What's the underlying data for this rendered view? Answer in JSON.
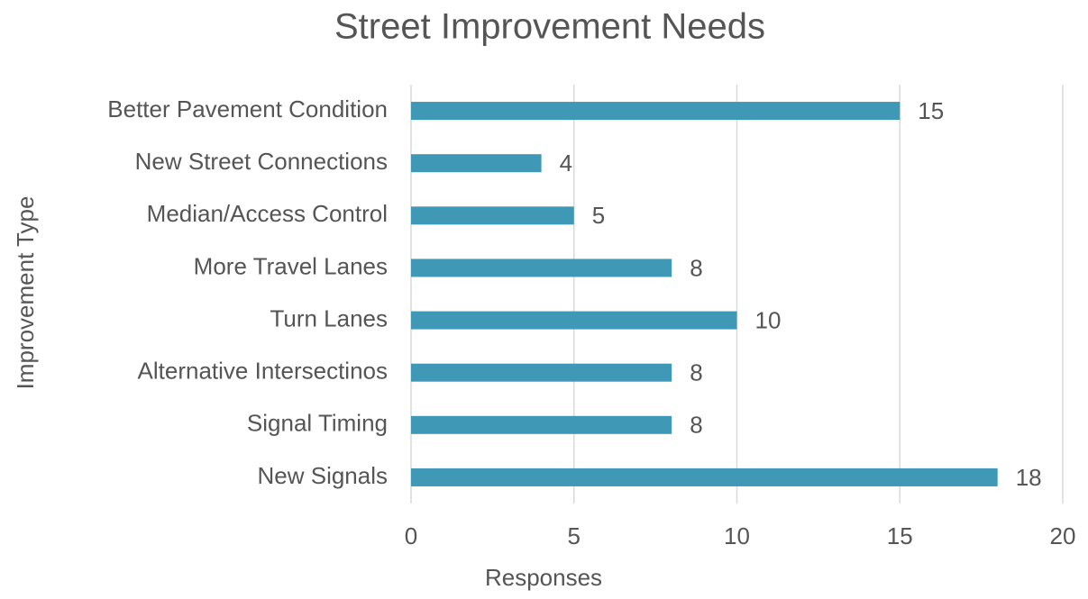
{
  "chart_data": {
    "type": "bar",
    "orientation": "horizontal",
    "title": "Street Improvement Needs",
    "x_label": "Responses",
    "y_label": "Improvement Type",
    "categories": [
      "Better Pavement Condition",
      "New Street Connections",
      "Median/Access Control",
      "More Travel Lanes",
      "Turn Lanes",
      "Alternative Intersectinos",
      "Signal Timing",
      "New Signals"
    ],
    "values": [
      15,
      4,
      5,
      8,
      10,
      8,
      8,
      18
    ],
    "color": "#3f98b5",
    "xlim": [
      0,
      20
    ],
    "xticks": [
      0,
      5,
      10,
      15,
      20
    ],
    "grid": true
  }
}
